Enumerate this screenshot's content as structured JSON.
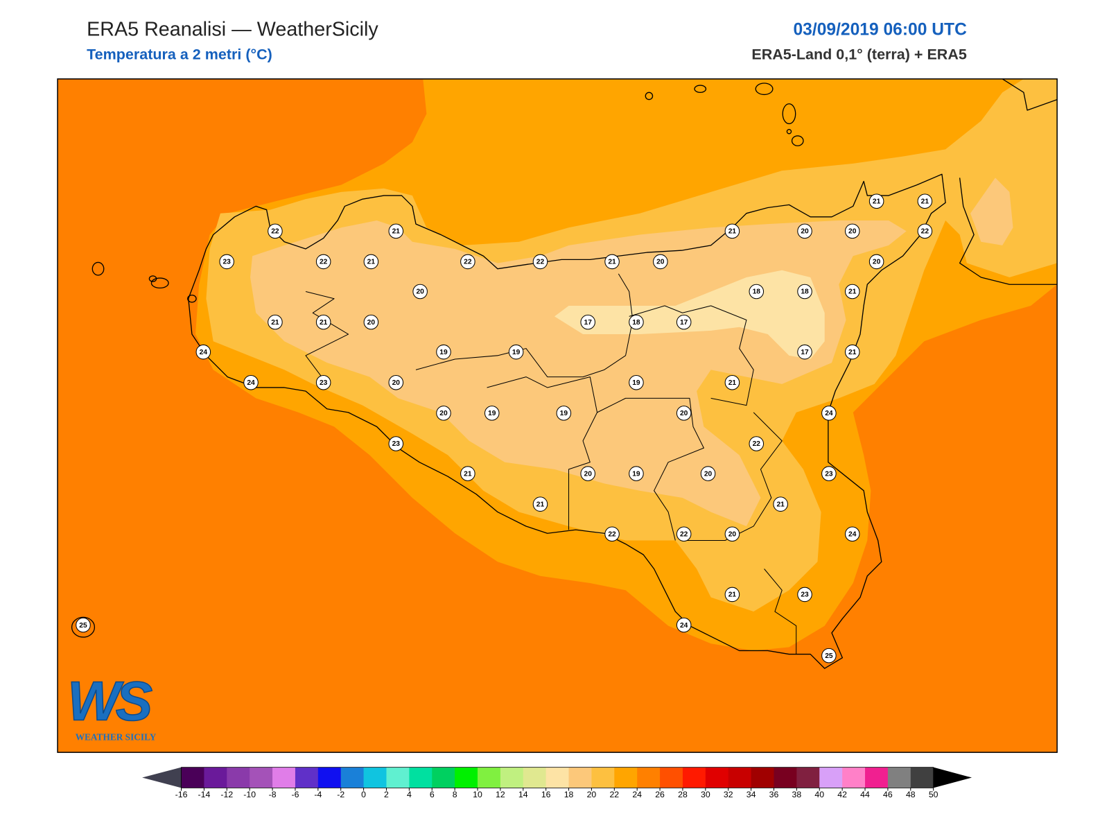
{
  "header": {
    "title": "ERA5 Reanalisi — WeatherSicily",
    "subtitle": "Temperatura a 2 metri (°C)",
    "date": "03/09/2019 06:00 UTC",
    "source": "ERA5-Land 0,1° (terra) + ERA5"
  },
  "logo": {
    "mark": "WS",
    "name": "WEATHER SICILY"
  },
  "stations": [
    22,
    21,
    23,
    22,
    21,
    22,
    22,
    21,
    20,
    21,
    20,
    20,
    21,
    21,
    22,
    20,
    20,
    18,
    18,
    21,
    21,
    21,
    20,
    17,
    18,
    17,
    24,
    19,
    19,
    17,
    21,
    24,
    23,
    20,
    19,
    21,
    20,
    19,
    19,
    20,
    24,
    22,
    23,
    21,
    20,
    19,
    20,
    23,
    21,
    21,
    22,
    22,
    20,
    24,
    21,
    23,
    24,
    25,
    25
  ],
  "colorbar": {
    "ticks": [
      -16,
      -14,
      -12,
      -10,
      -8,
      -6,
      -4,
      -2,
      0,
      2,
      4,
      6,
      8,
      10,
      12,
      14,
      16,
      18,
      20,
      22,
      24,
      26,
      28,
      30,
      32,
      34,
      36,
      38,
      40,
      42,
      44,
      46,
      48,
      50
    ],
    "colors": [
      "#4a0058",
      "#6a1a9a",
      "#8a3aaa",
      "#a452b8",
      "#e07de8",
      "#6030c8",
      "#1010f0",
      "#1a80d8",
      "#10c4e0",
      "#60f0d0",
      "#00e0a0",
      "#00d060",
      "#00f000",
      "#80f040",
      "#c0f080",
      "#e0e890",
      "#fde3a5",
      "#fcc87a",
      "#fdc040",
      "#ffa500",
      "#ff8000",
      "#ff5000",
      "#ff1a00",
      "#e00000",
      "#c80000",
      "#a00000",
      "#780020",
      "#802040",
      "#d8a0f8",
      "#ff80c8",
      "#f02090",
      "#808080",
      "#404040"
    ],
    "under_color": "#404050",
    "over_color": "#000000"
  }
}
